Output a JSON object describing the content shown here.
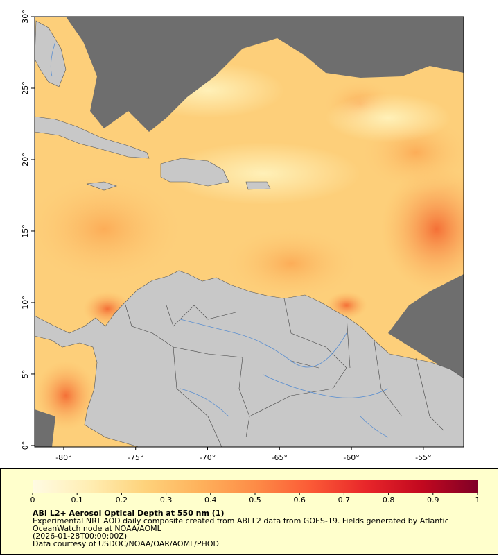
{
  "map": {
    "xlim": [
      -82.02,
      -52.2
    ],
    "ylim": [
      -0.1,
      30
    ],
    "xticks": [
      {
        "value": -80,
        "label": "-80°"
      },
      {
        "value": -75,
        "label": "-75°"
      },
      {
        "value": -70,
        "label": "-70°"
      },
      {
        "value": -65,
        "label": "-65°"
      },
      {
        "value": -60,
        "label": "-60°"
      },
      {
        "value": -55,
        "label": "-55°"
      }
    ],
    "yticks": [
      {
        "value": 0,
        "label": "0°"
      },
      {
        "value": 5,
        "label": "5°"
      },
      {
        "value": 10,
        "label": "10°"
      },
      {
        "value": 15,
        "label": "15°"
      },
      {
        "value": 20,
        "label": "20°"
      },
      {
        "value": 25,
        "label": "25°"
      },
      {
        "value": 30,
        "label": "30°"
      }
    ]
  },
  "colorbar": {
    "range": [
      0,
      1
    ],
    "ticks": [
      0,
      0.1,
      0.2,
      0.3,
      0.4,
      0.5,
      0.6,
      0.7,
      0.8,
      0.9,
      1
    ],
    "colors": [
      "#fffbe3",
      "#ffeeb4",
      "#fed37c",
      "#feb25c",
      "#fd8c47",
      "#fb5a36",
      "#e8262a",
      "#c2081f",
      "#800026"
    ]
  },
  "caption": {
    "title": "ABI L2+ Aerosol Optical Depth at 550 nm (1)",
    "lines": [
      "Experimental NRT AOD daily composite created from ABI L2 data from GOES-19. Fields generated by Atlantic",
      "OceanWatch node at NOAA/AOML",
      "(2026-01-28T00:00:00Z)",
      "Data courtesy of USDOC/NOAA/OAR/AOML/PHOD"
    ]
  }
}
